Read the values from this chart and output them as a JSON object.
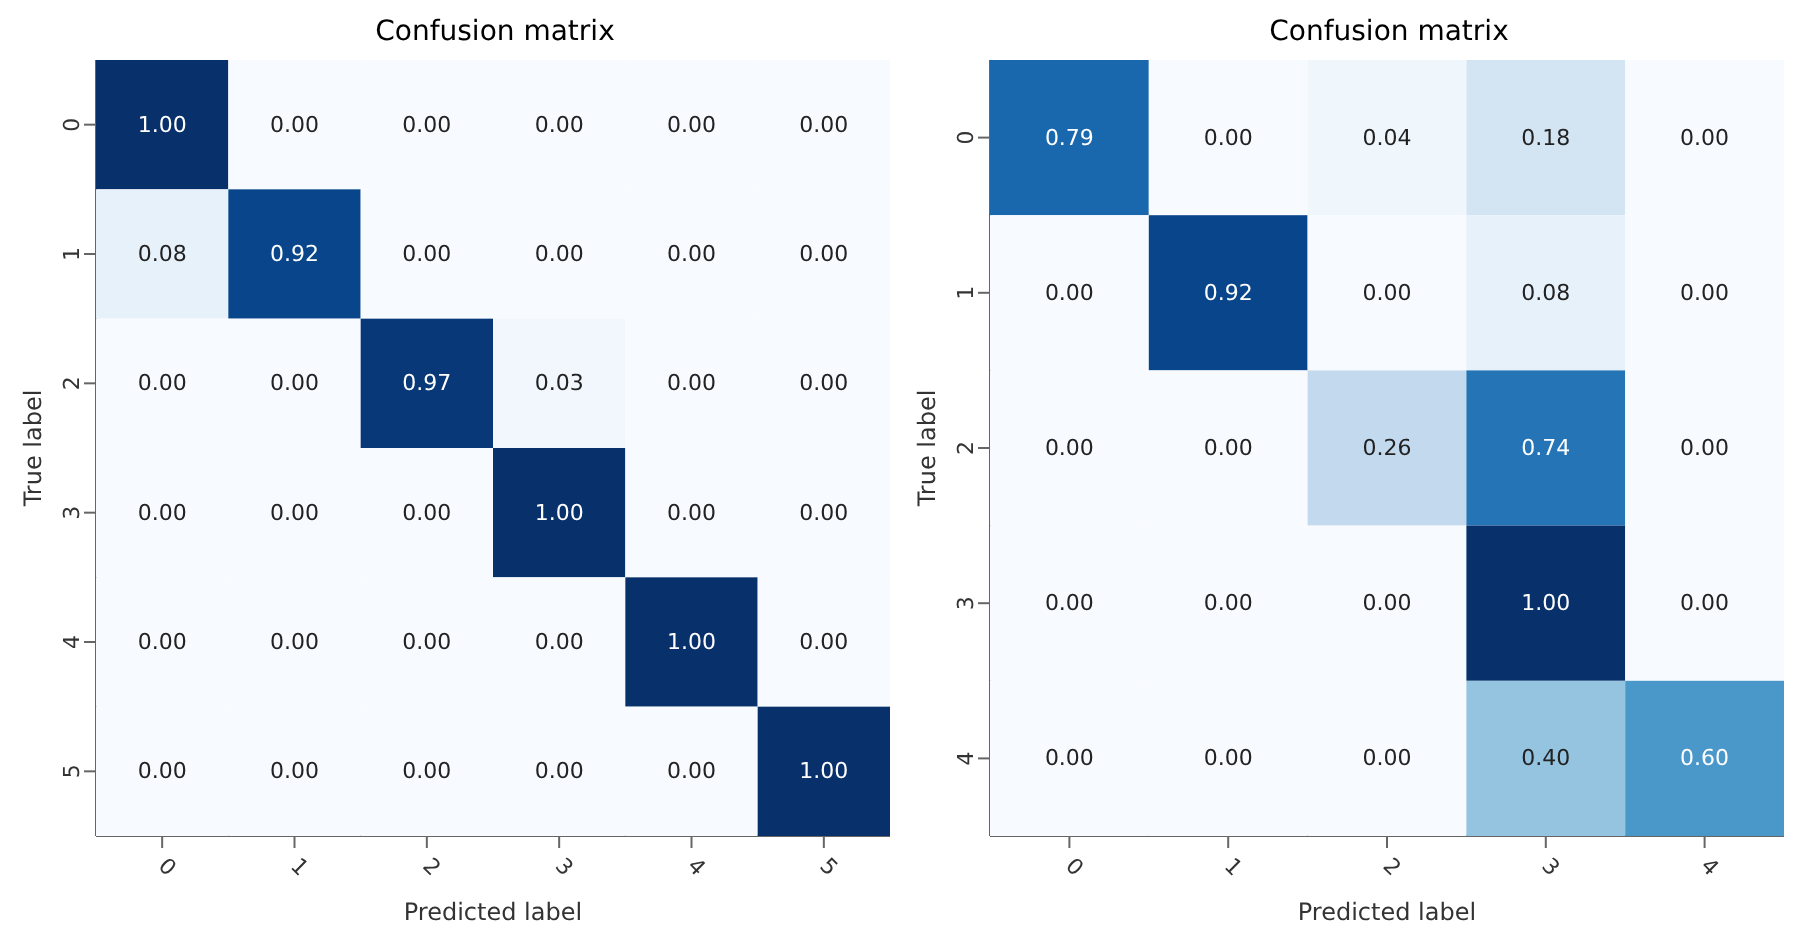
{
  "chart_data": [
    {
      "type": "heatmap",
      "title": "Confusion matrix",
      "xlabel": "Predicted label",
      "ylabel": "True label",
      "categories": [
        "0",
        "1",
        "2",
        "3",
        "4",
        "5"
      ],
      "y_categories": [
        "0",
        "1",
        "2",
        "3",
        "4",
        "5"
      ],
      "cells": [
        [
          1.0,
          0.0,
          0.0,
          0.0,
          0.0,
          0.0
        ],
        [
          0.08,
          0.92,
          0.0,
          0.0,
          0.0,
          0.0
        ],
        [
          0.0,
          0.0,
          0.97,
          0.03,
          0.0,
          0.0
        ],
        [
          0.0,
          0.0,
          0.0,
          1.0,
          0.0,
          0.0
        ],
        [
          0.0,
          0.0,
          0.0,
          0.0,
          1.0,
          0.0
        ],
        [
          0.0,
          0.0,
          0.0,
          0.0,
          0.0,
          1.0
        ]
      ],
      "cell_labels": [
        [
          "1.00",
          "0.00",
          "0.00",
          "0.00",
          "0.00",
          "0.00"
        ],
        [
          "0.08",
          "0.92",
          "0.00",
          "0.00",
          "0.00",
          "0.00"
        ],
        [
          "0.00",
          "0.00",
          "0.97",
          "0.03",
          "0.00",
          "0.00"
        ],
        [
          "0.00",
          "0.00",
          "0.00",
          "1.00",
          "0.00",
          "0.00"
        ],
        [
          "0.00",
          "0.00",
          "0.00",
          "0.00",
          "1.00",
          "0.00"
        ],
        [
          "0.00",
          "0.00",
          "0.00",
          "0.00",
          "0.00",
          "1.00"
        ]
      ]
    },
    {
      "type": "heatmap",
      "title": "Confusion matrix",
      "xlabel": "Predicted label",
      "ylabel": "True label",
      "categories": [
        "0",
        "1",
        "2",
        "3",
        "4"
      ],
      "y_categories": [
        "0",
        "1",
        "2",
        "3",
        "4"
      ],
      "cells": [
        [
          0.79,
          0.0,
          0.04,
          0.18,
          0.0
        ],
        [
          0.0,
          0.92,
          0.0,
          0.08,
          0.0
        ],
        [
          0.0,
          0.0,
          0.26,
          0.74,
          0.0
        ],
        [
          0.0,
          0.0,
          0.0,
          1.0,
          0.0
        ],
        [
          0.0,
          0.0,
          0.0,
          0.4,
          0.6
        ]
      ],
      "cell_labels": [
        [
          "0.79",
          "0.00",
          "0.04",
          "0.18",
          "0.00"
        ],
        [
          "0.00",
          "0.92",
          "0.00",
          "0.08",
          "0.00"
        ],
        [
          "0.00",
          "0.00",
          "0.26",
          "0.74",
          "0.00"
        ],
        [
          "0.00",
          "0.00",
          "0.00",
          "1.00",
          "0.00"
        ],
        [
          "0.00",
          "0.00",
          "0.00",
          "0.40",
          "0.60"
        ]
      ]
    }
  ]
}
